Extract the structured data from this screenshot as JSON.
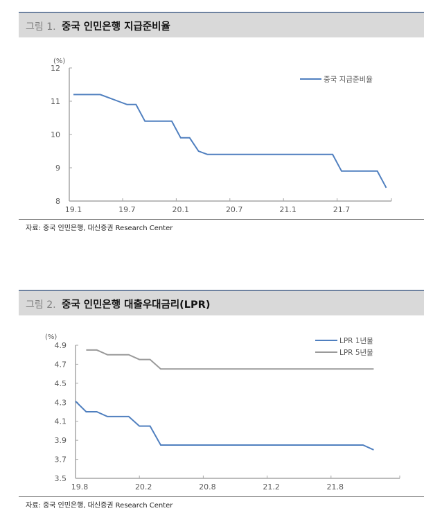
{
  "figure1": {
    "number": "그림 1.",
    "title": "중국 인민은행 지급준비율",
    "unit": "(%)",
    "legend": "중국 지급준비율",
    "source": "자료: 중국 인민은행, 대신증권 Research Center"
  },
  "figure2": {
    "number": "그림 2.",
    "title": "중국 인민은행 대출우대금리(LPR)",
    "unit": "(%)",
    "legend": [
      "LPR 1년물",
      "LPR 5년물"
    ],
    "source": "자료: 중국 인민은행, 대신증권 Research Center"
  },
  "colors": {
    "blue": "#4f7fbf",
    "gray": "#9a9a9a",
    "header_bg": "#d9d9d9"
  },
  "chart_data": [
    {
      "type": "line",
      "title": "중국 인민은행 지급준비율",
      "xlabel": "",
      "ylabel": "(%)",
      "ylim": [
        8,
        12
      ],
      "yticks": [
        8,
        9,
        10,
        11,
        12
      ],
      "xticks": [
        "19.1",
        "19.7",
        "20.1",
        "20.7",
        "21.1",
        "21.7"
      ],
      "legend_position": "top-right",
      "series": [
        {
          "name": "중국 지급준비율",
          "color": "#4f7fbf",
          "x": [
            "19.1",
            "19.2",
            "19.3",
            "19.4",
            "19.5",
            "19.6",
            "19.7",
            "19.8",
            "19.9",
            "19.10",
            "19.11",
            "19.12",
            "20.1",
            "20.2",
            "20.3",
            "20.4",
            "20.5",
            "20.6",
            "20.7",
            "20.8",
            "20.9",
            "20.10",
            "20.11",
            "20.12",
            "21.1",
            "21.2",
            "21.3",
            "21.4",
            "21.5",
            "21.6",
            "21.7",
            "21.8",
            "21.9",
            "21.10",
            "21.11",
            "21.12"
          ],
          "values": [
            11.2,
            11.2,
            11.2,
            11.2,
            11.1,
            11.0,
            10.9,
            10.9,
            10.4,
            10.4,
            10.4,
            10.4,
            9.9,
            9.9,
            9.5,
            9.4,
            9.4,
            9.4,
            9.4,
            9.4,
            9.4,
            9.4,
            9.4,
            9.4,
            9.4,
            9.4,
            9.4,
            9.4,
            9.4,
            9.4,
            8.9,
            8.9,
            8.9,
            8.9,
            8.9,
            8.4
          ]
        }
      ]
    },
    {
      "type": "line",
      "title": "중국 인민은행 대출우대금리(LPR)",
      "xlabel": "",
      "ylabel": "(%)",
      "ylim": [
        3.5,
        4.9
      ],
      "yticks": [
        3.5,
        3.7,
        3.9,
        4.1,
        4.3,
        4.5,
        4.7,
        4.9
      ],
      "xticks": [
        "19.8",
        "20.2",
        "20.8",
        "21.2",
        "21.8"
      ],
      "legend_position": "top-right",
      "series": [
        {
          "name": "LPR 1년물",
          "color": "#4f7fbf",
          "x": [
            "19.8",
            "19.9",
            "19.10",
            "19.11",
            "19.12",
            "20.1",
            "20.2",
            "20.3",
            "20.4",
            "20.5",
            "20.6",
            "20.7",
            "20.8",
            "20.9",
            "20.10",
            "20.11",
            "20.12",
            "21.1",
            "21.2",
            "21.3",
            "21.4",
            "21.5",
            "21.6",
            "21.7",
            "21.8",
            "21.9",
            "21.10",
            "21.11",
            "21.12"
          ],
          "values": [
            4.31,
            4.2,
            4.2,
            4.15,
            4.15,
            4.15,
            4.05,
            4.05,
            3.85,
            3.85,
            3.85,
            3.85,
            3.85,
            3.85,
            3.85,
            3.85,
            3.85,
            3.85,
            3.85,
            3.85,
            3.85,
            3.85,
            3.85,
            3.85,
            3.85,
            3.85,
            3.85,
            3.85,
            3.8
          ]
        },
        {
          "name": "LPR 5년물",
          "color": "#9a9a9a",
          "x": [
            "19.8",
            "19.9",
            "19.10",
            "19.11",
            "19.12",
            "20.1",
            "20.2",
            "20.3",
            "20.4",
            "20.5",
            "20.6",
            "20.7",
            "20.8",
            "20.9",
            "20.10",
            "20.11",
            "20.12",
            "21.1",
            "21.2",
            "21.3",
            "21.4",
            "21.5",
            "21.6",
            "21.7",
            "21.8",
            "21.9",
            "21.10",
            "21.11",
            "21.12"
          ],
          "values": [
            null,
            4.85,
            4.85,
            4.8,
            4.8,
            4.8,
            4.75,
            4.75,
            4.65,
            4.65,
            4.65,
            4.65,
            4.65,
            4.65,
            4.65,
            4.65,
            4.65,
            4.65,
            4.65,
            4.65,
            4.65,
            4.65,
            4.65,
            4.65,
            4.65,
            4.65,
            4.65,
            4.65,
            4.65
          ]
        }
      ]
    }
  ]
}
